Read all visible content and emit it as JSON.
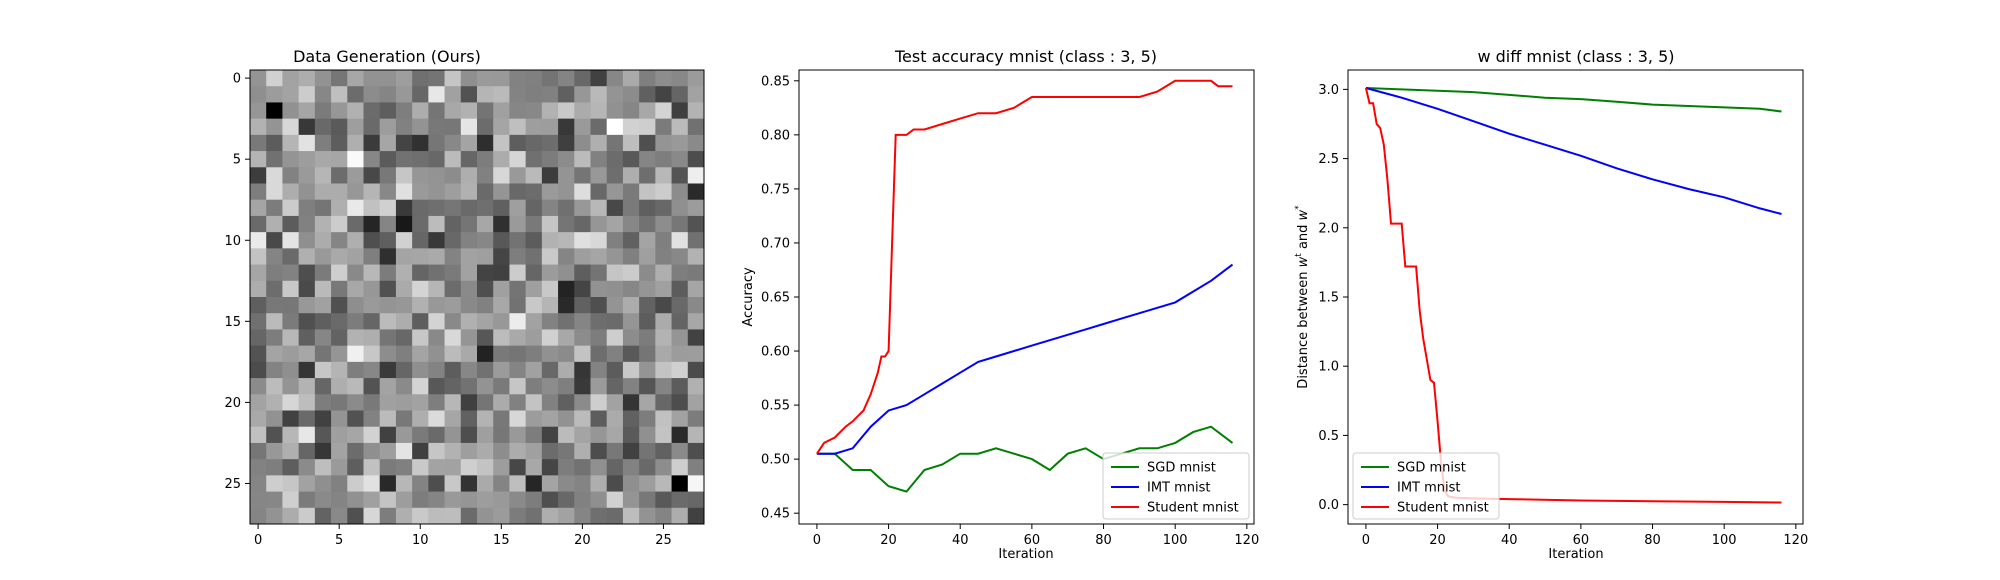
{
  "chart_data": [
    {
      "type": "heatmap",
      "title": "Data Generation (Ours)",
      "xticks": [
        "0",
        "5",
        "10",
        "15",
        "20",
        "25"
      ],
      "yticks": [
        "0",
        "5",
        "10",
        "15",
        "20",
        "25"
      ],
      "grid_size": 28,
      "colormap": "gray",
      "pixels": "generated"
    },
    {
      "type": "line",
      "title": "Test accuracy mnist (class : 3, 5)",
      "xlabel": "Iteration",
      "ylabel": "Accuracy",
      "xlim": [
        -5,
        122
      ],
      "ylim": [
        0.44,
        0.86
      ],
      "xticks": [
        "0",
        "20",
        "40",
        "60",
        "80",
        "100",
        "120"
      ],
      "yticks": [
        "0.45",
        "0.50",
        "0.55",
        "0.60",
        "0.65",
        "0.70",
        "0.75",
        "0.80",
        "0.85"
      ],
      "legend": "lower right",
      "series": [
        {
          "name": "SGD mnist",
          "color": "#008000",
          "x": [
            0,
            5,
            10,
            15,
            20,
            25,
            30,
            35,
            40,
            45,
            50,
            55,
            60,
            65,
            70,
            75,
            80,
            85,
            90,
            95,
            100,
            105,
            110,
            116
          ],
          "y": [
            0.505,
            0.505,
            0.49,
            0.49,
            0.475,
            0.47,
            0.49,
            0.495,
            0.505,
            0.505,
            0.51,
            0.505,
            0.5,
            0.49,
            0.505,
            0.51,
            0.5,
            0.505,
            0.51,
            0.51,
            0.515,
            0.525,
            0.53,
            0.515
          ]
        },
        {
          "name": "IMT mnist",
          "color": "#0000ff",
          "x": [
            0,
            5,
            10,
            15,
            20,
            25,
            30,
            35,
            40,
            45,
            50,
            55,
            60,
            65,
            70,
            75,
            80,
            85,
            90,
            95,
            100,
            105,
            110,
            116
          ],
          "y": [
            0.505,
            0.505,
            0.51,
            0.53,
            0.545,
            0.55,
            0.56,
            0.57,
            0.58,
            0.59,
            0.595,
            0.6,
            0.605,
            0.61,
            0.615,
            0.62,
            0.625,
            0.63,
            0.635,
            0.64,
            0.645,
            0.655,
            0.665,
            0.68
          ]
        },
        {
          "name": "Student mnist",
          "color": "#ff0000",
          "x": [
            0,
            2,
            5,
            8,
            10,
            13,
            15,
            17,
            18,
            19,
            20,
            21,
            22,
            23,
            25,
            27,
            30,
            35,
            40,
            45,
            50,
            55,
            60,
            70,
            80,
            90,
            95,
            100,
            105,
            110,
            112,
            116
          ],
          "y": [
            0.505,
            0.515,
            0.52,
            0.53,
            0.535,
            0.545,
            0.56,
            0.58,
            0.595,
            0.595,
            0.6,
            0.7,
            0.8,
            0.8,
            0.8,
            0.805,
            0.805,
            0.81,
            0.815,
            0.82,
            0.82,
            0.825,
            0.835,
            0.835,
            0.835,
            0.835,
            0.84,
            0.85,
            0.85,
            0.85,
            0.845,
            0.845
          ]
        }
      ]
    },
    {
      "type": "line",
      "title": "w diff mnist (class : 3, 5)",
      "xlabel": "Iteration",
      "ylabel": "Distance between w^t and w^*",
      "ylabel_main": "Distance between ",
      "ylabel_w": "w",
      "ylabel_t": "t",
      "ylabel_and": " and ",
      "ylabel_star": "*",
      "xlim": [
        -5,
        122
      ],
      "ylim": [
        -0.14,
        3.14
      ],
      "xticks": [
        "0",
        "20",
        "40",
        "60",
        "80",
        "100",
        "120"
      ],
      "yticks": [
        "0.0",
        "0.5",
        "1.0",
        "1.5",
        "2.0",
        "2.5",
        "3.0"
      ],
      "legend": "lower left",
      "series": [
        {
          "name": "SGD mnist",
          "color": "#008000",
          "x": [
            0,
            10,
            20,
            30,
            40,
            50,
            60,
            70,
            80,
            90,
            100,
            110,
            116
          ],
          "y": [
            3.01,
            3.0,
            2.99,
            2.98,
            2.96,
            2.94,
            2.93,
            2.91,
            2.89,
            2.88,
            2.87,
            2.86,
            2.84
          ]
        },
        {
          "name": "IMT mnist",
          "color": "#0000ff",
          "x": [
            0,
            10,
            20,
            30,
            40,
            50,
            60,
            70,
            80,
            90,
            100,
            110,
            116
          ],
          "y": [
            3.01,
            2.94,
            2.86,
            2.77,
            2.68,
            2.6,
            2.52,
            2.43,
            2.35,
            2.28,
            2.22,
            2.14,
            2.1
          ]
        },
        {
          "name": "Student mnist",
          "color": "#ff0000",
          "x": [
            0,
            1,
            2,
            3,
            4,
            5,
            6,
            7,
            8,
            10,
            11,
            12,
            14,
            15,
            16,
            18,
            19,
            20,
            21,
            22,
            23,
            25,
            30,
            40,
            60,
            80,
            100,
            116
          ],
          "y": [
            3.01,
            2.9,
            2.9,
            2.75,
            2.72,
            2.6,
            2.35,
            2.03,
            2.03,
            2.03,
            1.72,
            1.72,
            1.72,
            1.4,
            1.2,
            0.9,
            0.88,
            0.6,
            0.3,
            0.1,
            0.06,
            0.05,
            0.045,
            0.04,
            0.03,
            0.025,
            0.02,
            0.015
          ]
        }
      ]
    }
  ]
}
